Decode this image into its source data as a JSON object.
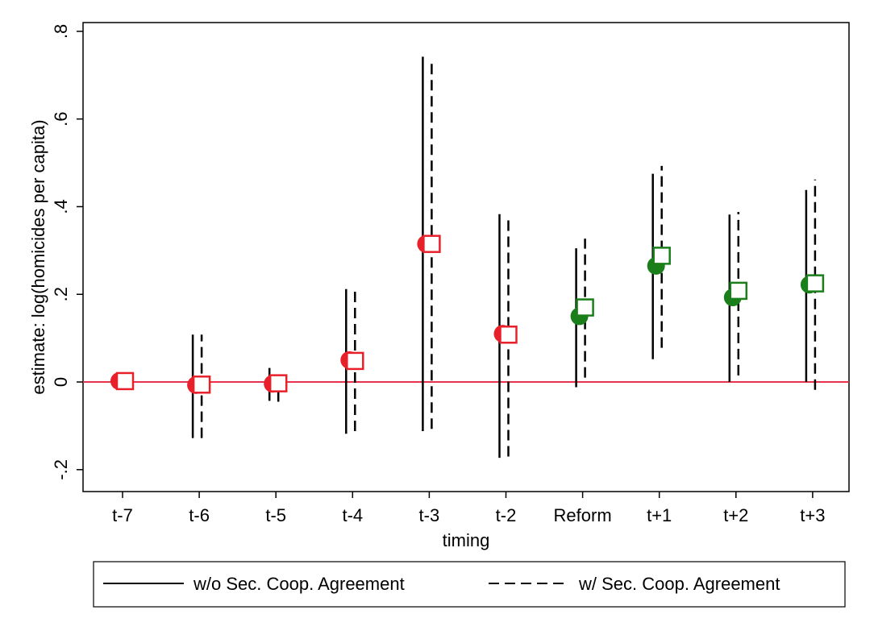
{
  "chart_data": {
    "type": "scatter",
    "title": "",
    "xlabel": "timing",
    "ylabel": "estimate: log(homicides per capita)",
    "categories": [
      "t-7",
      "t-6",
      "t-5",
      "t-4",
      "t-3",
      "t-2",
      "Reform",
      "t+1",
      "t+2",
      "t+3"
    ],
    "yticks": [
      {
        "value": -0.2,
        "label": "-.2"
      },
      {
        "value": 0,
        "label": "0"
      },
      {
        "value": 0.2,
        "label": ".2"
      },
      {
        "value": 0.4,
        "label": ".4"
      },
      {
        "value": 0.6,
        "label": ".6"
      },
      {
        "value": 0.8,
        "label": ".8"
      }
    ],
    "ylim": [
      -0.25,
      0.82
    ],
    "reference_line": {
      "y": 0,
      "color": "#e8324b"
    },
    "series": [
      {
        "name": "w/o Sec. Coop. Agreement",
        "line_style": "solid",
        "marker": "circle",
        "estimates": [
          0.002,
          -0.007,
          -0.004,
          0.05,
          0.315,
          0.11,
          0.15,
          0.265,
          0.193,
          0.222
        ],
        "ci_low": [
          null,
          -0.128,
          -0.043,
          -0.118,
          -0.112,
          -0.173,
          -0.012,
          0.052,
          0.0,
          0.0
        ],
        "ci_high": [
          null,
          0.108,
          0.032,
          0.212,
          0.742,
          0.383,
          0.305,
          0.475,
          0.382,
          0.438
        ]
      },
      {
        "name": "w/ Sec. Coop. Agreement",
        "line_style": "dashed",
        "marker": "square",
        "estimates": [
          0.002,
          -0.006,
          -0.003,
          0.048,
          0.315,
          0.108,
          0.17,
          0.288,
          0.208,
          0.225
        ],
        "ci_low": [
          null,
          -0.128,
          -0.045,
          -0.112,
          -0.107,
          -0.17,
          0.01,
          0.078,
          0.015,
          -0.018
        ],
        "ci_high": [
          null,
          0.108,
          0.028,
          0.206,
          0.735,
          0.377,
          0.327,
          0.493,
          0.388,
          0.462
        ]
      }
    ],
    "colors": {
      "pre_period": "#e8202a",
      "post_period": "#1a7f1a",
      "ci_line": "#000000"
    },
    "legend": {
      "placement": "bottom"
    }
  }
}
